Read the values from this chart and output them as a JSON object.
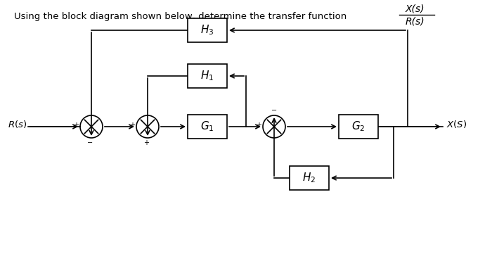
{
  "title_text": "Using the block diagram shown below, determine the transfer function",
  "fraction_num": "X(s)",
  "fraction_den": "R(s)",
  "label_Rs": "R(s)",
  "label_Xs": "X(S)",
  "block_G1": "G₁",
  "block_G2": "G₂",
  "block_H1": "H₁",
  "block_H2": "H₂",
  "block_H3": "H₃",
  "bg_color": "#ffffff",
  "line_color": "#000000",
  "box_color": "#ffffff",
  "text_color": "#000000"
}
